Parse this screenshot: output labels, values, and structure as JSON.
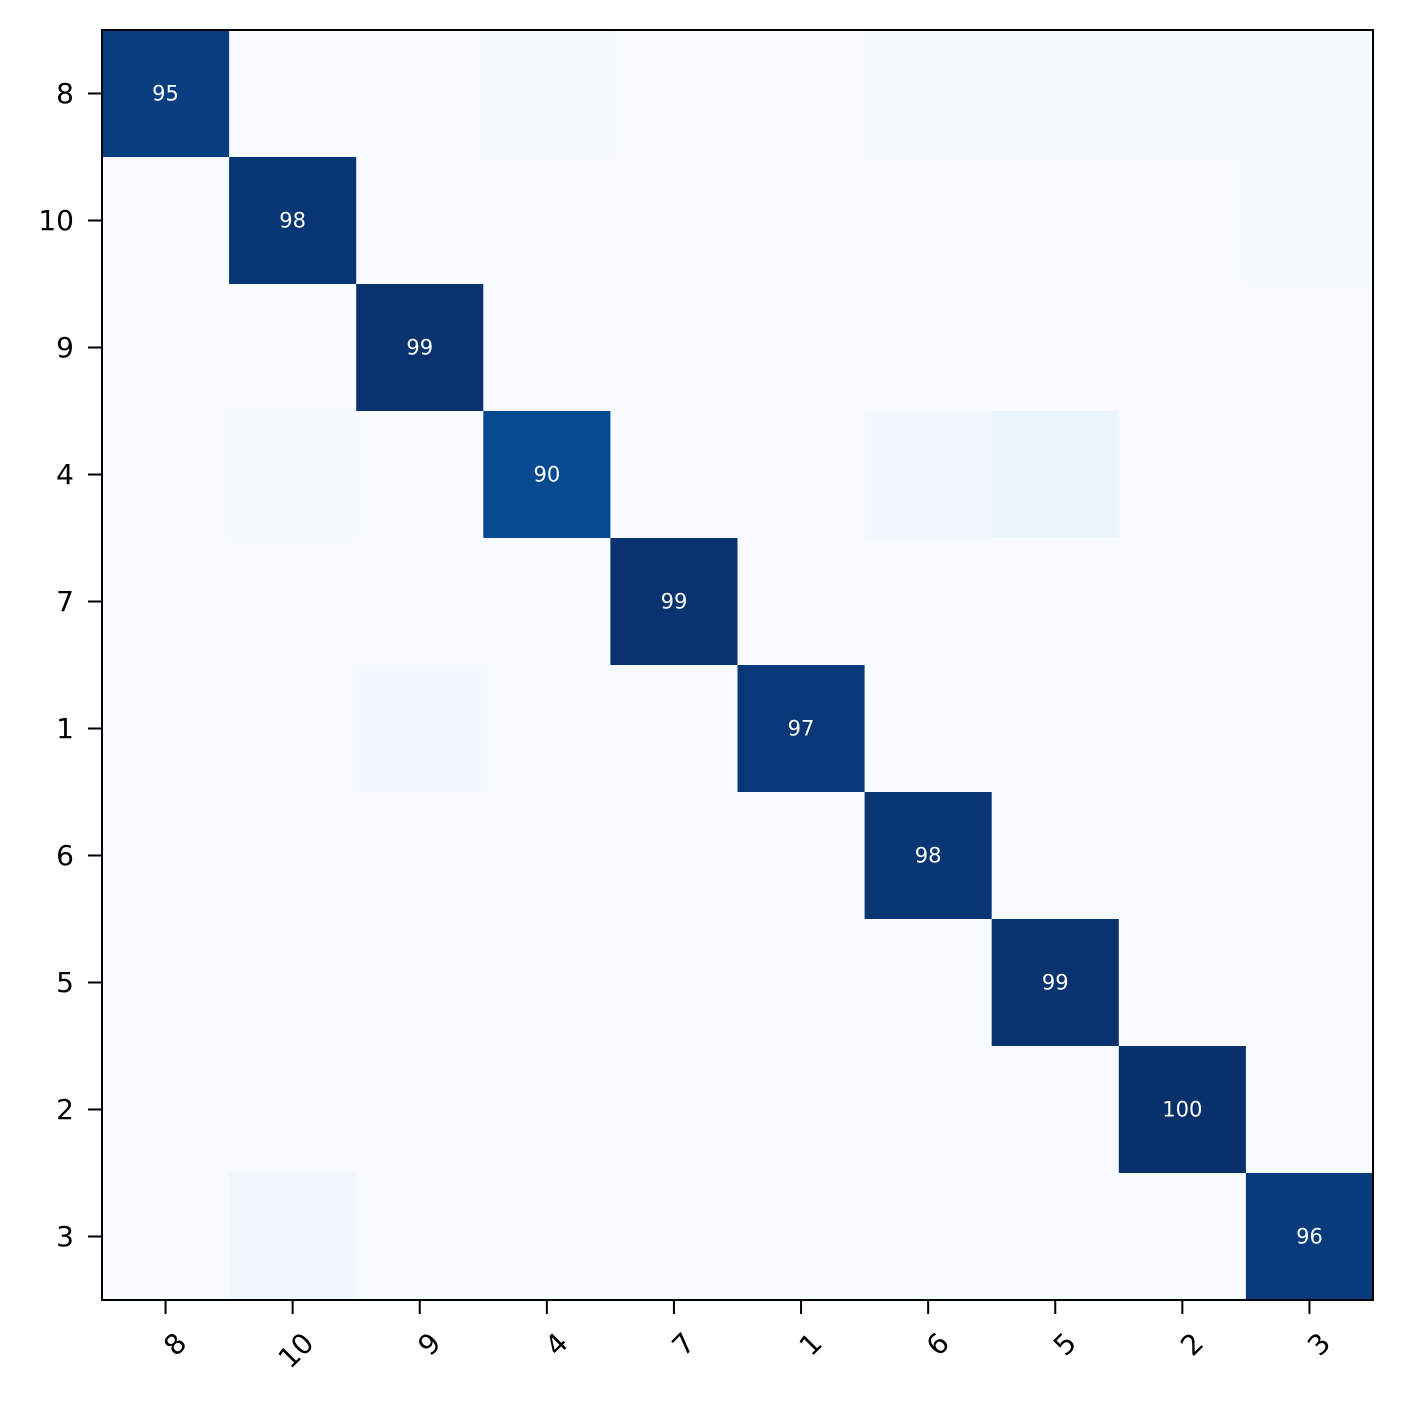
{
  "chart_data": {
    "type": "heatmap",
    "title": "",
    "xlabel": "",
    "ylabel": "",
    "row_labels": [
      "8",
      "10",
      "9",
      "4",
      "7",
      "1",
      "6",
      "5",
      "2",
      "3"
    ],
    "col_labels": [
      "8",
      "10",
      "9",
      "4",
      "7",
      "1",
      "6",
      "5",
      "2",
      "3"
    ],
    "values": [
      [
        95,
        0,
        0,
        1,
        0,
        0,
        1,
        1,
        1,
        1
      ],
      [
        0,
        98,
        0,
        0,
        0,
        0,
        0,
        0,
        0,
        1
      ],
      [
        0,
        0,
        99,
        0,
        0,
        0,
        0,
        0,
        0,
        0
      ],
      [
        0,
        1,
        0,
        90,
        0,
        0,
        2,
        5,
        0,
        0
      ],
      [
        0,
        0,
        0,
        0,
        99,
        0,
        0,
        0,
        0,
        0
      ],
      [
        0,
        0,
        2,
        0,
        0,
        97,
        0,
        0,
        0,
        0
      ],
      [
        0,
        0,
        0,
        0,
        0,
        0,
        98,
        0,
        0,
        0
      ],
      [
        0,
        0,
        0,
        0,
        0,
        0,
        0,
        99,
        0,
        0
      ],
      [
        0,
        0,
        0,
        0,
        0,
        0,
        0,
        0,
        100,
        0
      ],
      [
        0,
        3,
        0,
        0,
        0,
        0,
        0,
        0,
        0,
        96
      ]
    ],
    "value_range": [
      0,
      100
    ],
    "annotated": "diagonal",
    "colormap": "Blues",
    "grid": false
  }
}
